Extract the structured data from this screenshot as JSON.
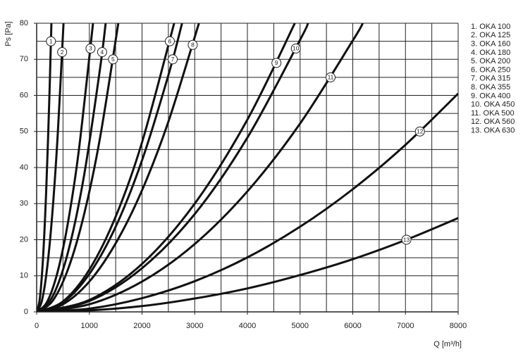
{
  "chart_data": {
    "type": "line",
    "xlabel": "Q [m³/h]",
    "ylabel": "Ps [Pa]",
    "xlim": [
      0,
      8000
    ],
    "ylim": [
      0,
      80
    ],
    "xticks": [
      0,
      1000,
      2000,
      3000,
      4000,
      5000,
      6000,
      7000,
      8000
    ],
    "yticks": [
      0,
      10,
      20,
      30,
      40,
      50,
      60,
      70,
      80
    ],
    "xminor": [
      500,
      1500,
      2500,
      3500,
      4500,
      5500,
      6500,
      7500
    ],
    "yminor": [
      5,
      15,
      25,
      35,
      45,
      55,
      65,
      75
    ],
    "grid": true,
    "series": [
      {
        "name": "1. OKA 100",
        "label": "1",
        "color": "#111",
        "x": [
          0,
          60,
          120,
          180,
          240,
          280
        ],
        "values": [
          0,
          3.7,
          14.7,
          33.1,
          58.8,
          80
        ]
      },
      {
        "name": "2. OKA 125",
        "label": "2",
        "color": "#111",
        "x": [
          0,
          100,
          200,
          300,
          400,
          510
        ],
        "values": [
          0,
          3.1,
          12.3,
          27.7,
          49.2,
          80
        ]
      },
      {
        "name": "3. OKA 160",
        "label": "3",
        "color": "#111",
        "x": [
          0,
          200,
          400,
          600,
          800,
          1070
        ],
        "values": [
          0,
          2.8,
          11.2,
          25.2,
          44.7,
          80
        ]
      },
      {
        "name": "4. OKA 180",
        "label": "4",
        "color": "#111",
        "x": [
          0,
          300,
          600,
          900,
          1200,
          1310
        ],
        "values": [
          0,
          4.2,
          16.8,
          37.8,
          67.1,
          80
        ]
      },
      {
        "name": "5. OKA 200",
        "label": "5",
        "color": "#111",
        "x": [
          0,
          300,
          600,
          900,
          1200,
          1550
        ],
        "values": [
          0,
          3.0,
          12.0,
          27.0,
          48.0,
          80
        ]
      },
      {
        "name": "6. OKA 250",
        "label": "6",
        "color": "#111",
        "x": [
          0,
          500,
          1000,
          1500,
          2000,
          2610
        ],
        "values": [
          0,
          2.9,
          11.7,
          26.4,
          47.0,
          80
        ]
      },
      {
        "name": "7. OKA 315",
        "label": "7",
        "color": "#111",
        "x": [
          0,
          500,
          1000,
          1500,
          2000,
          2500,
          2760
        ],
        "values": [
          0,
          2.6,
          10.5,
          23.6,
          42.0,
          65.6,
          80
        ]
      },
      {
        "name": "8. OKA 355",
        "label": "8",
        "color": "#111",
        "x": [
          0,
          500,
          1000,
          1500,
          2000,
          2500,
          3080
        ],
        "values": [
          0,
          2.1,
          8.4,
          19.0,
          33.7,
          52.7,
          80
        ]
      },
      {
        "name": "9. OKA 400",
        "label": "9",
        "color": "#111",
        "x": [
          0,
          1000,
          2000,
          3000,
          4000,
          4900
        ],
        "values": [
          0,
          3.3,
          13.3,
          30.0,
          53.3,
          80
        ]
      },
      {
        "name": "10. OKA 450",
        "label": "10",
        "color": "#111",
        "x": [
          0,
          1000,
          2000,
          3000,
          4000,
          5000,
          5150
        ],
        "values": [
          0,
          3.0,
          12.1,
          27.1,
          48.3,
          75.4,
          80
        ]
      },
      {
        "name": "11. OKA 500",
        "label": "11",
        "color": "#111",
        "x": [
          0,
          1000,
          2000,
          3000,
          4000,
          5000,
          6000,
          6190
        ],
        "values": [
          0,
          2.1,
          8.4,
          18.8,
          33.4,
          52.2,
          75.2,
          80
        ]
      },
      {
        "name": "12. OKA 560",
        "label": "12",
        "color": "#111",
        "x": [
          0,
          1000,
          2000,
          3000,
          4000,
          5000,
          6000,
          7000,
          8000
        ],
        "values": [
          0,
          0.9,
          3.8,
          8.5,
          15.1,
          23.6,
          34.0,
          46.3,
          60.5
        ]
      },
      {
        "name": "13. OKA 630",
        "label": "13",
        "color": "#111",
        "x": [
          0,
          1000,
          2000,
          3000,
          4000,
          5000,
          6000,
          7000,
          8000
        ],
        "values": [
          0,
          0.4,
          1.6,
          3.7,
          6.5,
          10.2,
          14.6,
          19.9,
          26
        ]
      }
    ]
  }
}
